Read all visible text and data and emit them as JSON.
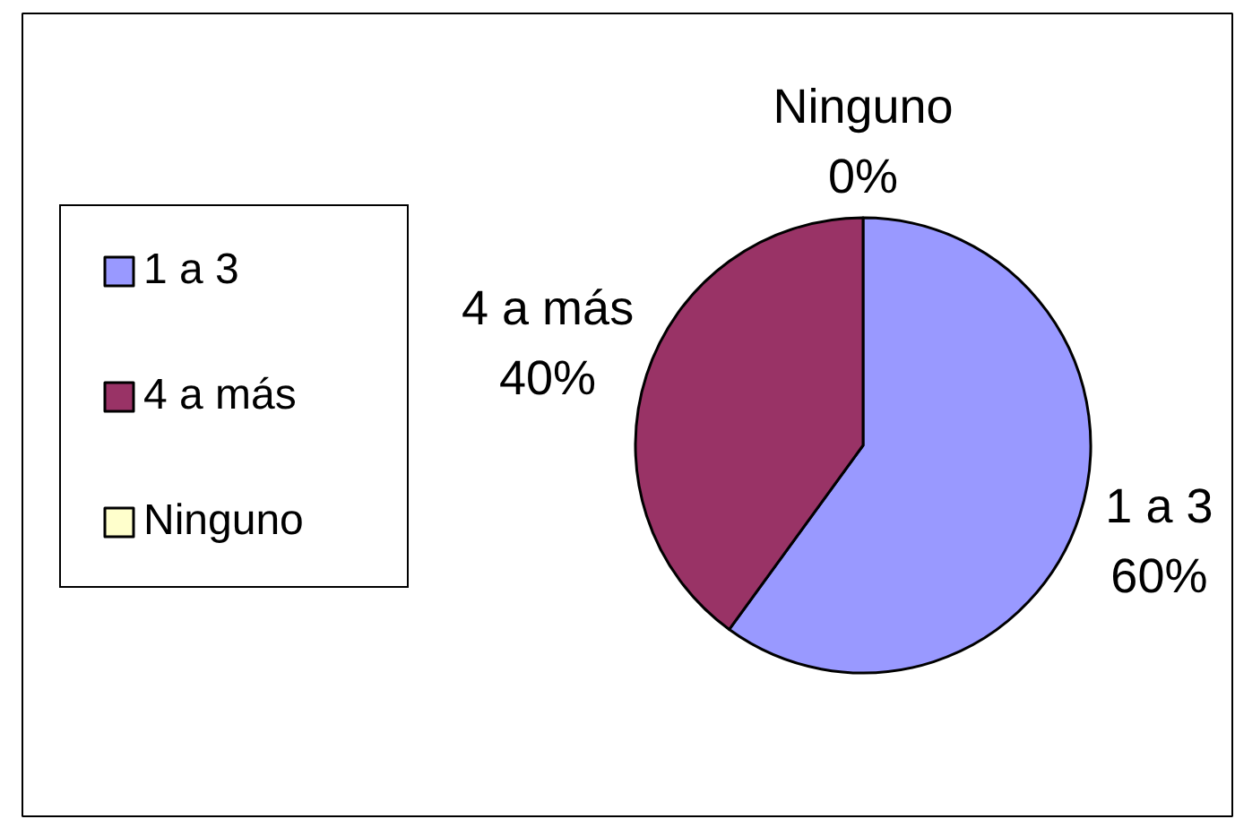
{
  "chart_data": {
    "type": "pie",
    "categories": [
      "1 a 3",
      "4 a más",
      "Ninguno"
    ],
    "values": [
      60,
      40,
      0
    ],
    "colors": [
      "#9999ff",
      "#993366",
      "#ffffcc"
    ],
    "value_labels": [
      "60%",
      "40%",
      "0%"
    ],
    "legend": "left"
  }
}
